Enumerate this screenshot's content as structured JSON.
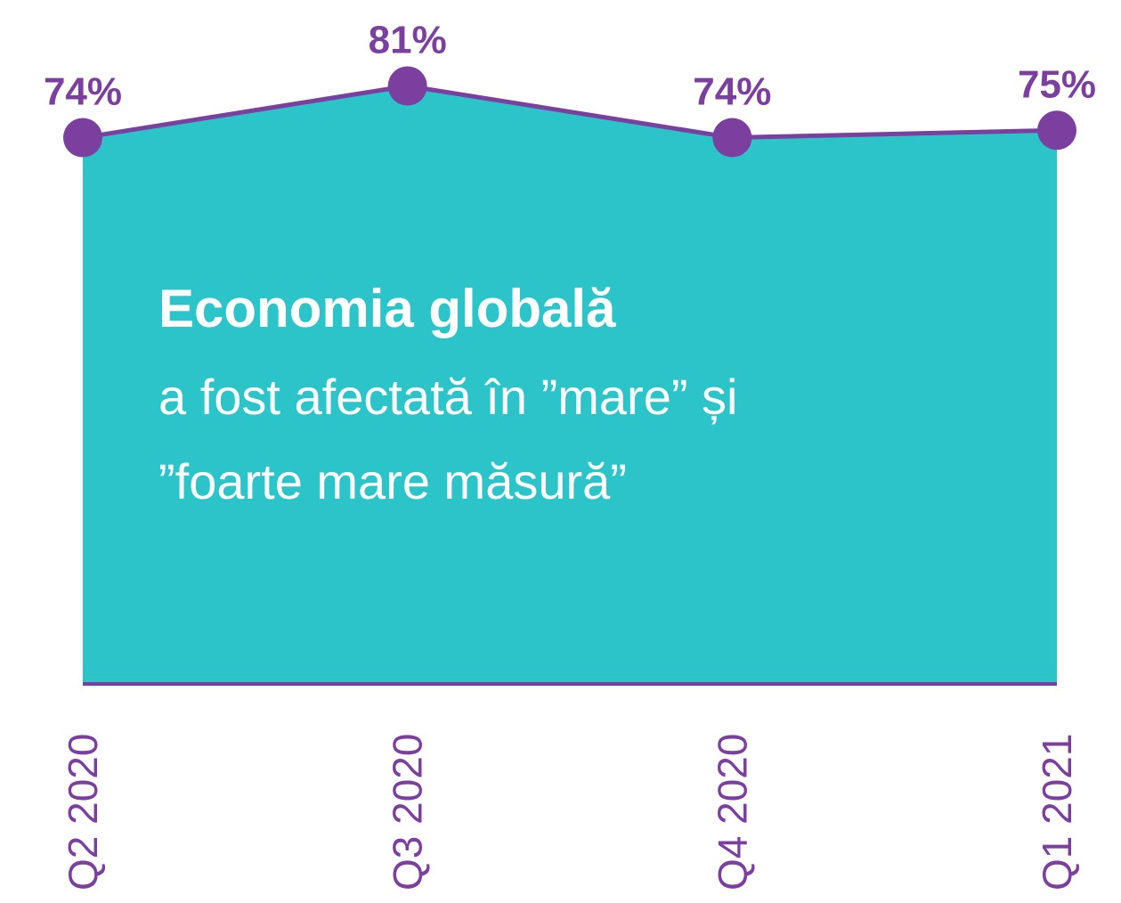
{
  "chart_data": {
    "type": "area",
    "title": "Economia globală",
    "subtitle": [
      "a fost afectată în ”mare” și",
      "”foarte mare măsură”"
    ],
    "categories": [
      "Q2 2020",
      "Q3 2020",
      "Q4 2020",
      "Q1 2021"
    ],
    "values": [
      74,
      81,
      74,
      75
    ],
    "value_labels": [
      "74%",
      "81%",
      "74%",
      "75%"
    ],
    "ylim": [
      0,
      100
    ],
    "fill_color": "#2bc4c9",
    "line_color": "#7b3fa0"
  }
}
